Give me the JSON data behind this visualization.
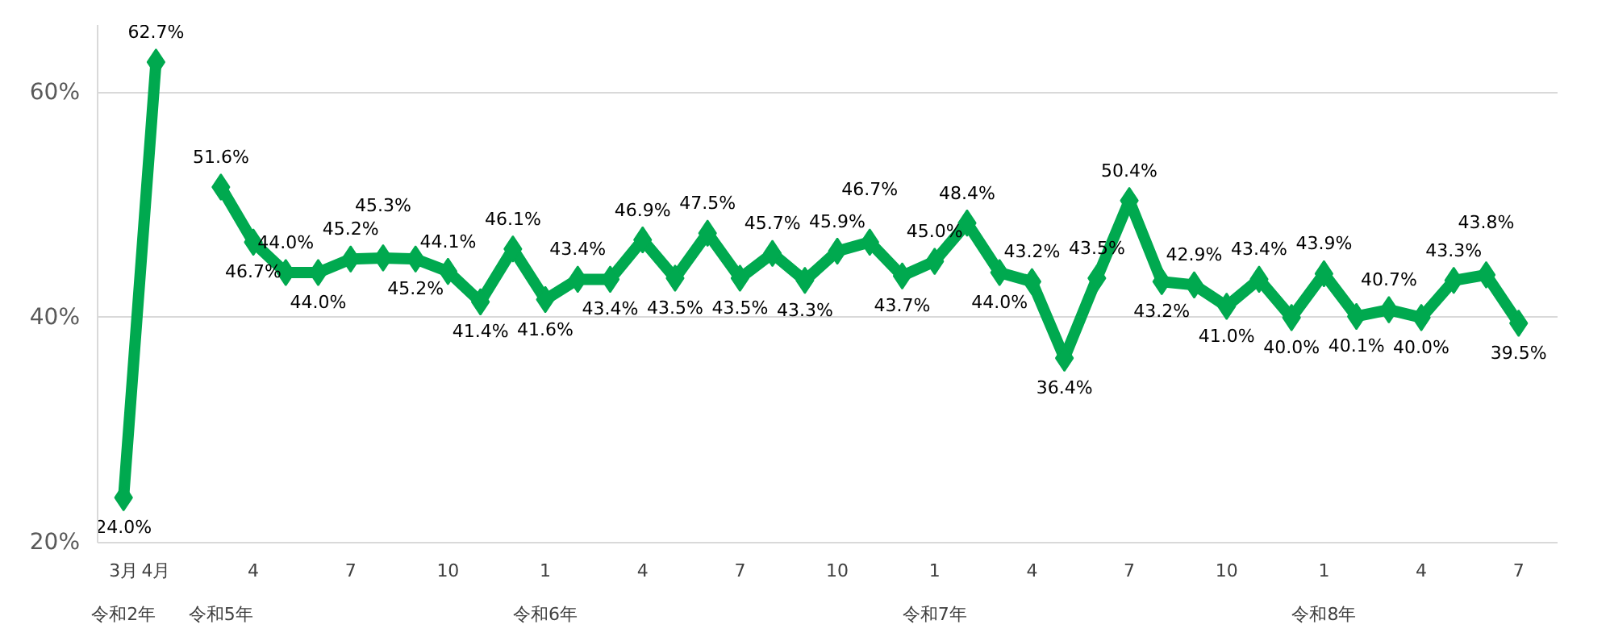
{
  "chart_data": {
    "type": "line",
    "categories": [
      "3月",
      "4月",
      null,
      null,
      "4",
      null,
      null,
      "7",
      null,
      null,
      "10",
      null,
      null,
      "1",
      null,
      null,
      "4",
      null,
      null,
      "7",
      null,
      null,
      "10",
      null,
      null,
      "1",
      null,
      null,
      "4",
      null,
      null,
      "7",
      null,
      null,
      "10",
      null,
      null,
      "1",
      null,
      null,
      "4",
      null,
      null,
      "7"
    ],
    "series": [
      {
        "color": "#00a94f",
        "values": [
          24.0,
          62.7,
          null,
          51.6,
          46.7,
          44.0,
          44.0,
          45.2,
          45.3,
          45.2,
          44.1,
          41.4,
          46.1,
          41.6,
          43.4,
          43.4,
          46.9,
          43.5,
          47.5,
          43.5,
          45.7,
          43.3,
          45.9,
          46.7,
          43.7,
          45.0,
          48.4,
          44.0,
          43.2,
          36.4,
          43.5,
          50.4,
          43.2,
          42.9,
          41.0,
          43.4,
          40.0,
          43.9,
          40.1,
          40.7,
          40.0,
          43.3,
          43.8,
          39.5
        ],
        "value_labels": [
          "24.0%",
          "62.7%",
          null,
          "51.6%",
          "46.7%",
          "44.0%",
          "44.0%",
          "45.2%",
          "45.3%",
          "45.2%",
          "44.1%",
          "41.4%",
          "46.1%",
          "41.6%",
          "43.4%",
          "43.4%",
          "46.9%",
          "43.5%",
          "47.5%",
          "43.5%",
          "45.7%",
          "43.3%",
          "45.9%",
          "46.7%",
          "43.7%",
          "45.0%",
          "48.4%",
          "44.0%",
          "43.2%",
          "36.4%",
          "43.5%",
          "50.4%",
          "43.2%",
          "42.9%",
          "41.0%",
          "43.4%",
          "40.0%",
          "43.9%",
          "40.1%",
          "40.7%",
          "40.0%",
          "43.3%",
          "43.8%",
          "39.5%"
        ]
      }
    ],
    "annotations": [
      "令和2年",
      "令和5年",
      "令和6年",
      "令和7年",
      "令和8年"
    ],
    "ylim": [
      20,
      66
    ],
    "yticks": [
      {
        "value": 20,
        "label": "20%"
      },
      {
        "value": 40,
        "label": "40%"
      },
      {
        "value": 60,
        "label": "60%"
      }
    ],
    "grid": "y",
    "marker": "diamond",
    "line_style": "solid"
  }
}
